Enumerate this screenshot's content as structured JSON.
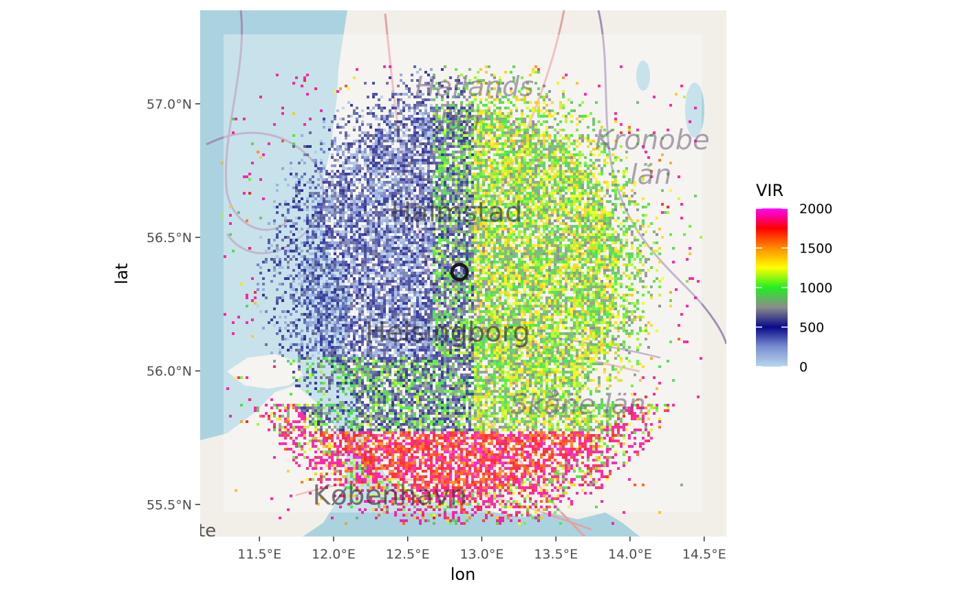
{
  "chart_data": {
    "type": "heatmap",
    "title": "",
    "xlabel": "lon",
    "ylabel": "lat",
    "xlim": [
      11.1,
      14.65
    ],
    "ylim": [
      55.38,
      57.35
    ],
    "x_ticks": [
      {
        "value": 11.5,
        "label": "11.5°E"
      },
      {
        "value": 12.0,
        "label": "12.0°E"
      },
      {
        "value": 12.5,
        "label": "12.5°E"
      },
      {
        "value": 13.0,
        "label": "13.0°E"
      },
      {
        "value": 13.5,
        "label": "13.5°E"
      },
      {
        "value": 14.0,
        "label": "14.0°E"
      },
      {
        "value": 14.5,
        "label": "14.5°E"
      }
    ],
    "y_ticks": [
      {
        "value": 55.5,
        "label": "55.5°N"
      },
      {
        "value": 56.0,
        "label": "56.0°N"
      },
      {
        "value": 56.5,
        "label": "56.5°N"
      },
      {
        "value": 57.0,
        "label": "57.0°N"
      }
    ],
    "radar_site": {
      "lon": 12.85,
      "lat": 56.37
    },
    "legend": {
      "title": "VIR",
      "placement": "right",
      "limits": [
        0,
        2000
      ],
      "ticks": [
        {
          "value": 0,
          "label": "0"
        },
        {
          "value": 500,
          "label": "500"
        },
        {
          "value": 1000,
          "label": "1000"
        },
        {
          "value": 1500,
          "label": "1500"
        },
        {
          "value": 2000,
          "label": "2000"
        }
      ],
      "colors": [
        {
          "stop": 0.0,
          "color": "#b7d7ee"
        },
        {
          "stop": 0.125,
          "color": "#7a8fd0"
        },
        {
          "stop": 0.25,
          "color": "#0a0a8a"
        },
        {
          "stop": 0.375,
          "color": "#8c8c8c"
        },
        {
          "stop": 0.5,
          "color": "#22ee22"
        },
        {
          "stop": 0.625,
          "color": "#ffff00"
        },
        {
          "stop": 0.75,
          "color": "#ff8c00"
        },
        {
          "stop": 0.875,
          "color": "#ff0000"
        },
        {
          "stop": 1.0,
          "color": "#ff00ff"
        }
      ]
    },
    "basemap_labels": [
      {
        "text": "Hallands",
        "lon": 12.95,
        "lat": 57.03
      },
      {
        "text": "län",
        "lon": 12.85,
        "lat": 56.9
      },
      {
        "text": "Kronobe",
        "lon": 14.15,
        "lat": 56.83
      },
      {
        "text": "län",
        "lon": 14.14,
        "lat": 56.7
      },
      {
        "text": "Halmstad",
        "lon": 12.83,
        "lat": 56.56
      },
      {
        "text": "Helsingborg",
        "lon": 12.77,
        "lat": 56.11
      },
      {
        "text": "Skåne län",
        "lon": 13.65,
        "lat": 55.84
      },
      {
        "text": "København",
        "lon": 12.38,
        "lat": 55.5
      }
    ],
    "attribution_fragment": "te"
  }
}
